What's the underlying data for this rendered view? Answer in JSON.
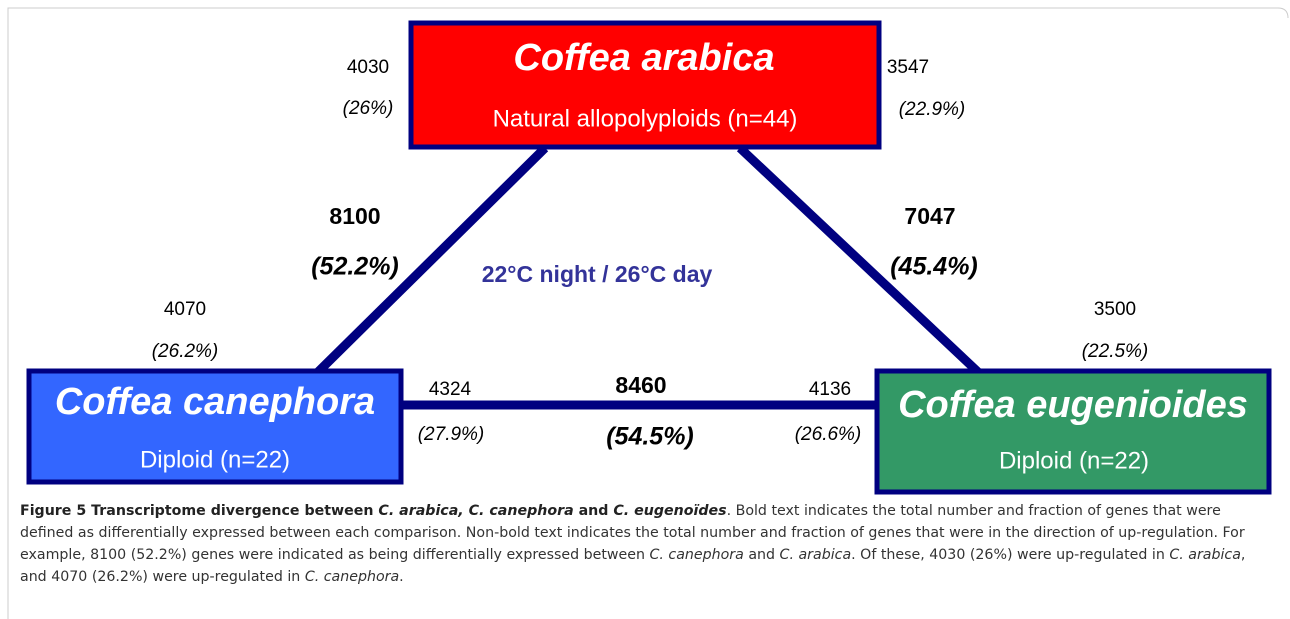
{
  "nodes": [
    {
      "title": "Coffea arabica",
      "subtitle": "Natural allopolyploids (n=44)"
    },
    {
      "title": "Coffea canephora",
      "subtitle": "Diploid (n=22)"
    },
    {
      "title": "Coffea eugenioides",
      "subtitle": "Diploid (n=22)"
    }
  ],
  "edges": [
    {
      "total": "8100",
      "total_pct": "(52.2%)",
      "up_first": {
        "count": "4030",
        "pct": "(26%)"
      },
      "up_second": {
        "count": "4070",
        "pct": "(26.2%)"
      }
    },
    {
      "total": "7047",
      "total_pct": "(45.4%)",
      "up_first": {
        "count": "3547",
        "pct": "(22.9%)"
      },
      "up_second": {
        "count": "3500",
        "pct": "(22.5%)"
      }
    },
    {
      "total": "8460",
      "total_pct": "(54.5%)",
      "up_first": {
        "count": "4324",
        "pct": "(27.9%)"
      },
      "up_second": {
        "count": "4136",
        "pct": "(26.6%)"
      }
    }
  ],
  "center_label": "22°C night / 26°C day",
  "caption": {
    "runs": [
      "Figure 5 Transcriptome divergence between ",
      "C. arabica, C. canephora",
      " and ",
      "C. eugenoïdes",
      ". Bold text indicates the total number and fraction of genes that were defined as differentially expressed between each comparison. Non-bold text indicates the total number and fraction of genes that were in the direction of up-regulation. For example, 8100 (52.2%) genes were indicated as being differentially expressed between ",
      "C. canephora",
      " and ",
      "C. arabica",
      ". Of these, 4030 (26%) were up-regulated in ",
      "C. arabica",
      ", and 4070 (26.2%) were up-regulated in ",
      "C. canephora",
      "."
    ]
  }
}
